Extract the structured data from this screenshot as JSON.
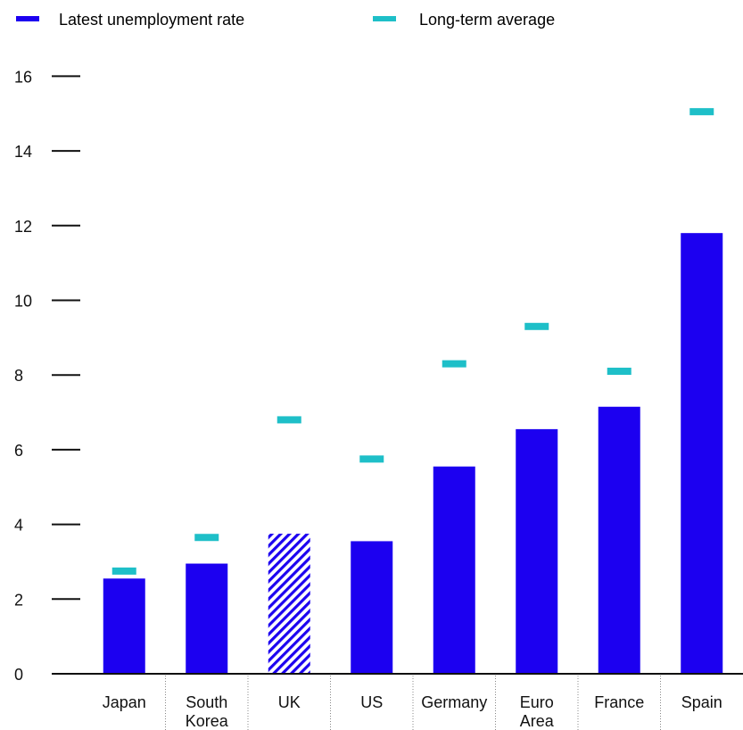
{
  "chart_data": {
    "type": "bar",
    "categories": [
      [
        "Japan"
      ],
      [
        "South",
        "Korea"
      ],
      [
        "UK"
      ],
      [
        "US"
      ],
      [
        "Germany"
      ],
      [
        "Euro",
        "Area"
      ],
      [
        "France"
      ],
      [
        "Spain"
      ]
    ],
    "series": [
      {
        "name": "Latest unemployment rate",
        "type": "bar",
        "values": [
          2.55,
          2.95,
          3.75,
          3.55,
          5.55,
          6.55,
          7.15,
          11.8
        ],
        "hatched_categories": [
          "UK"
        ]
      },
      {
        "name": "Long-term average",
        "type": "marker",
        "values": [
          2.75,
          3.65,
          6.8,
          5.75,
          8.3,
          9.3,
          8.1,
          15.05
        ]
      }
    ],
    "yticks": [
      "0",
      "2",
      "4",
      "6",
      "8",
      "10",
      "12",
      "14",
      "16"
    ],
    "ylim": [
      0,
      16
    ],
    "grid": false,
    "legend_position": "top-left",
    "colors": {
      "bar": "#1c00f0",
      "marker": "#1ebfc8",
      "axis": "#111111",
      "text": "#111111",
      "separator": "#888888"
    }
  }
}
